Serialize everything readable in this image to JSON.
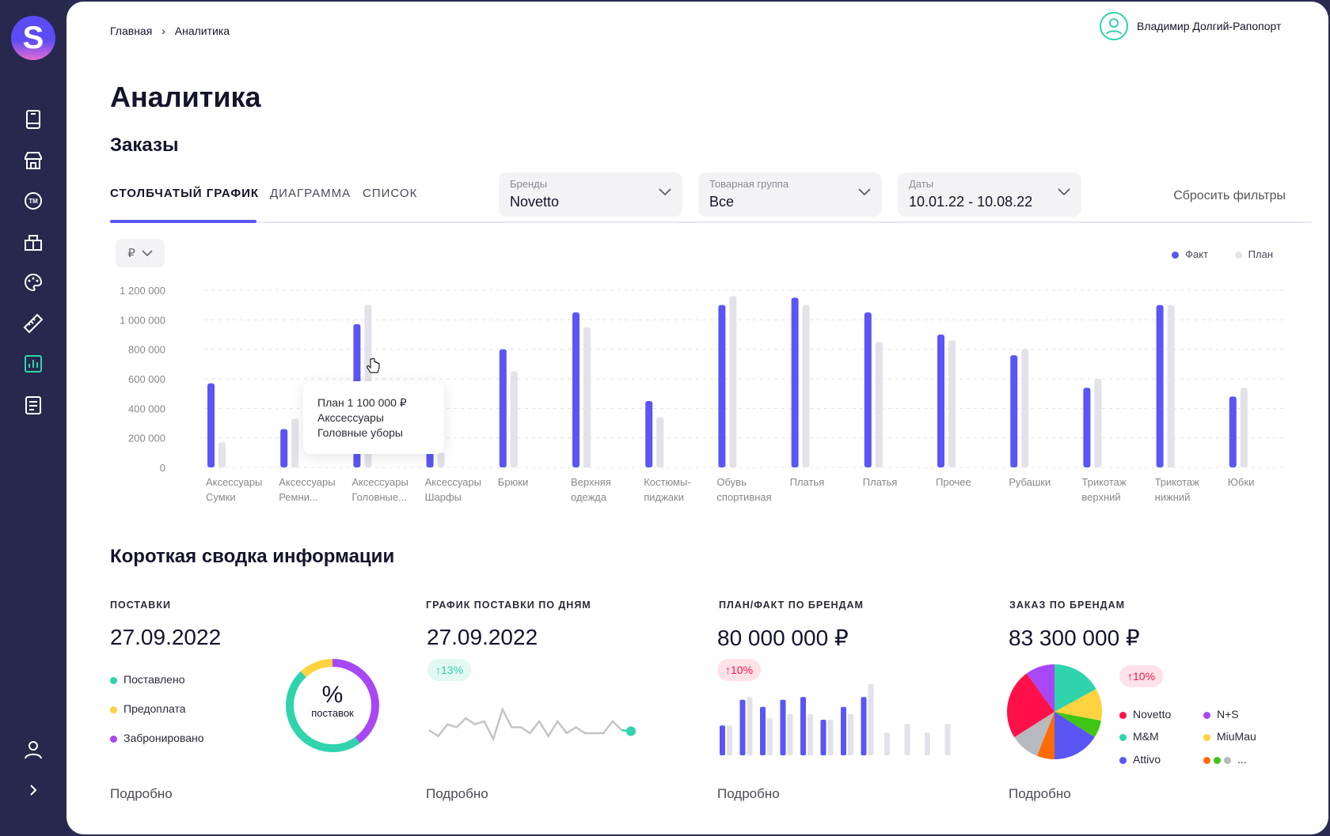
{
  "sidebar": {
    "logo": "S",
    "items": [
      {
        "icon": "book-icon"
      },
      {
        "icon": "store-icon"
      },
      {
        "icon": "trademark-icon"
      },
      {
        "icon": "boxes-icon"
      },
      {
        "icon": "palette-icon"
      },
      {
        "icon": "ruler-icon"
      },
      {
        "icon": "chart-icon",
        "active": true
      },
      {
        "icon": "report-icon"
      }
    ],
    "bottom": [
      {
        "icon": "user-icon"
      },
      {
        "icon": "chevron-right-icon"
      }
    ]
  },
  "breadcrumb": [
    "Главная",
    "Аналитика"
  ],
  "user": {
    "name": "Владимир Долгий-Рапопорт"
  },
  "page_title": "Аналитика",
  "section_title": "Заказы",
  "tabs": [
    {
      "label": "СТОЛБЧАТЫЙ ГРАФИК",
      "active": true
    },
    {
      "label": "ДИАГРАММА"
    },
    {
      "label": "СПИСОК"
    }
  ],
  "filters": [
    {
      "label": "Бренды",
      "value": "Novetto"
    },
    {
      "label": "Товарная группа",
      "value": "Все"
    },
    {
      "label": "Даты",
      "value": "10.01.22 - 10.08.22"
    }
  ],
  "reset_filters": "Сбросить фильтры",
  "currency": "₽",
  "colors": {
    "fact": "#5b55f5",
    "plan": "#e2e2e8",
    "accent": "#2fd3ac"
  },
  "chart_data": {
    "type": "bar",
    "legend": [
      "Факт",
      "План"
    ],
    "legend_position": "top-right",
    "yticks": [
      "1 200 000",
      "1 000 000",
      "800 000",
      "600 000",
      "400 000",
      "200 000",
      "0"
    ],
    "ylim": [
      0,
      1200000
    ],
    "grid": true,
    "categories": [
      [
        "Аксессуары",
        "Сумки"
      ],
      [
        "Аксессуары",
        "Ремни..."
      ],
      [
        "Аксессуары",
        "Головные..."
      ],
      [
        "Аксессуары",
        "Шарфы"
      ],
      [
        "Брюки",
        ""
      ],
      [
        "Верхняя",
        "одежда"
      ],
      [
        "Костюмы-",
        "пиджаки"
      ],
      [
        "Обувь",
        "спортивная"
      ],
      [
        "Платья",
        ""
      ],
      [
        "Платья",
        ""
      ],
      [
        "Прочее",
        ""
      ],
      [
        "Рубашки",
        ""
      ],
      [
        "Трикотаж",
        "верхний"
      ],
      [
        "Трикотаж",
        "нижний"
      ],
      [
        "Юбки",
        ""
      ]
    ],
    "series": [
      {
        "name": "Факт",
        "values": [
          570000,
          260000,
          970000,
          100000,
          800000,
          1050000,
          450000,
          1100000,
          1150000,
          1050000,
          900000,
          760000,
          540000,
          1100000,
          480000
        ]
      },
      {
        "name": "План",
        "values": [
          170000,
          330000,
          1100000,
          100000,
          650000,
          950000,
          340000,
          1160000,
          1100000,
          850000,
          860000,
          800000,
          600000,
          1100000,
          540000
        ]
      }
    ],
    "tooltip": [
      "План 1 100 000 ₽",
      "Акссессуары",
      "Головные уборы"
    ]
  },
  "summary": {
    "title": "Короткая сводка информации",
    "more": "Подробно",
    "cards": [
      {
        "label": "ПОСТАВКИ",
        "value": "27.09.2022",
        "legend": [
          {
            "label": "Поставлено",
            "color": "#2fd3ac"
          },
          {
            "label": "Предоплата",
            "color": "#ffd23f"
          },
          {
            "label": "Забронировано",
            "color": "#a847f5"
          }
        ],
        "donut": {
          "center": "%",
          "sub": "поставок",
          "shares": [
            {
              "color": "#a847f5",
              "value": 40
            },
            {
              "color": "#2fd3ac",
              "value": 48
            },
            {
              "color": "#ffd23f",
              "value": 12
            }
          ]
        }
      },
      {
        "label": "ГРАФИК ПОСТАВКИ ПО ДНЯМ",
        "value": "27.09.2022",
        "badge": "↑13%",
        "spark": [
          5,
          3,
          7,
          6,
          9,
          7,
          8,
          2,
          12,
          6,
          6,
          4,
          8,
          3,
          8,
          4,
          6,
          4,
          4,
          4,
          8,
          5,
          2
        ]
      },
      {
        "label": "ПЛАН/ФАКТ ПО БРЕНДАМ",
        "value": "80 000 000 ₽",
        "badge": "↑10%",
        "bars": [
          [
            0.42,
            0.42
          ],
          [
            0.78,
            0.82
          ],
          [
            0.68,
            0.52
          ],
          [
            0.78,
            0.58
          ],
          [
            0.82,
            0.58
          ],
          [
            0.5,
            0.5
          ],
          [
            0.68,
            0.58
          ],
          [
            0.82,
            1.0
          ],
          [
            null,
            0.32
          ],
          [
            null,
            0.44
          ],
          [
            null,
            0.32
          ],
          [
            null,
            0.44
          ]
        ]
      },
      {
        "label": "ЗАКАЗ ПО БРЕНДАМ",
        "value": "83 300 000 ₽",
        "badge": "↑10%",
        "pie": [
          {
            "name": "M&M",
            "color": "#2fd3ac",
            "value": 17
          },
          {
            "name": "MiuMau",
            "color": "#ffd23f",
            "value": 11
          },
          {
            "name": "",
            "color": "#3fc514",
            "value": 6
          },
          {
            "name": "Attivo",
            "color": "#5b55f5",
            "value": 16
          },
          {
            "name": "",
            "color": "#ff6b00",
            "value": 6
          },
          {
            "name": "",
            "color": "#b8b9bf",
            "value": 10
          },
          {
            "name": "Novetto",
            "color": "#ff1049",
            "value": 24
          },
          {
            "name": "N+S",
            "color": "#a847f5",
            "value": 10
          }
        ],
        "legend": [
          {
            "label": "Novetto",
            "color": "#ff1049"
          },
          {
            "label": "N+S",
            "color": "#a847f5"
          },
          {
            "label": "M&M",
            "color": "#2fd3ac"
          },
          {
            "label": "MiuMau",
            "color": "#ffd23f"
          },
          {
            "label": "Attivo",
            "color": "#5b55f5"
          }
        ],
        "legend_more": "..."
      }
    ]
  }
}
